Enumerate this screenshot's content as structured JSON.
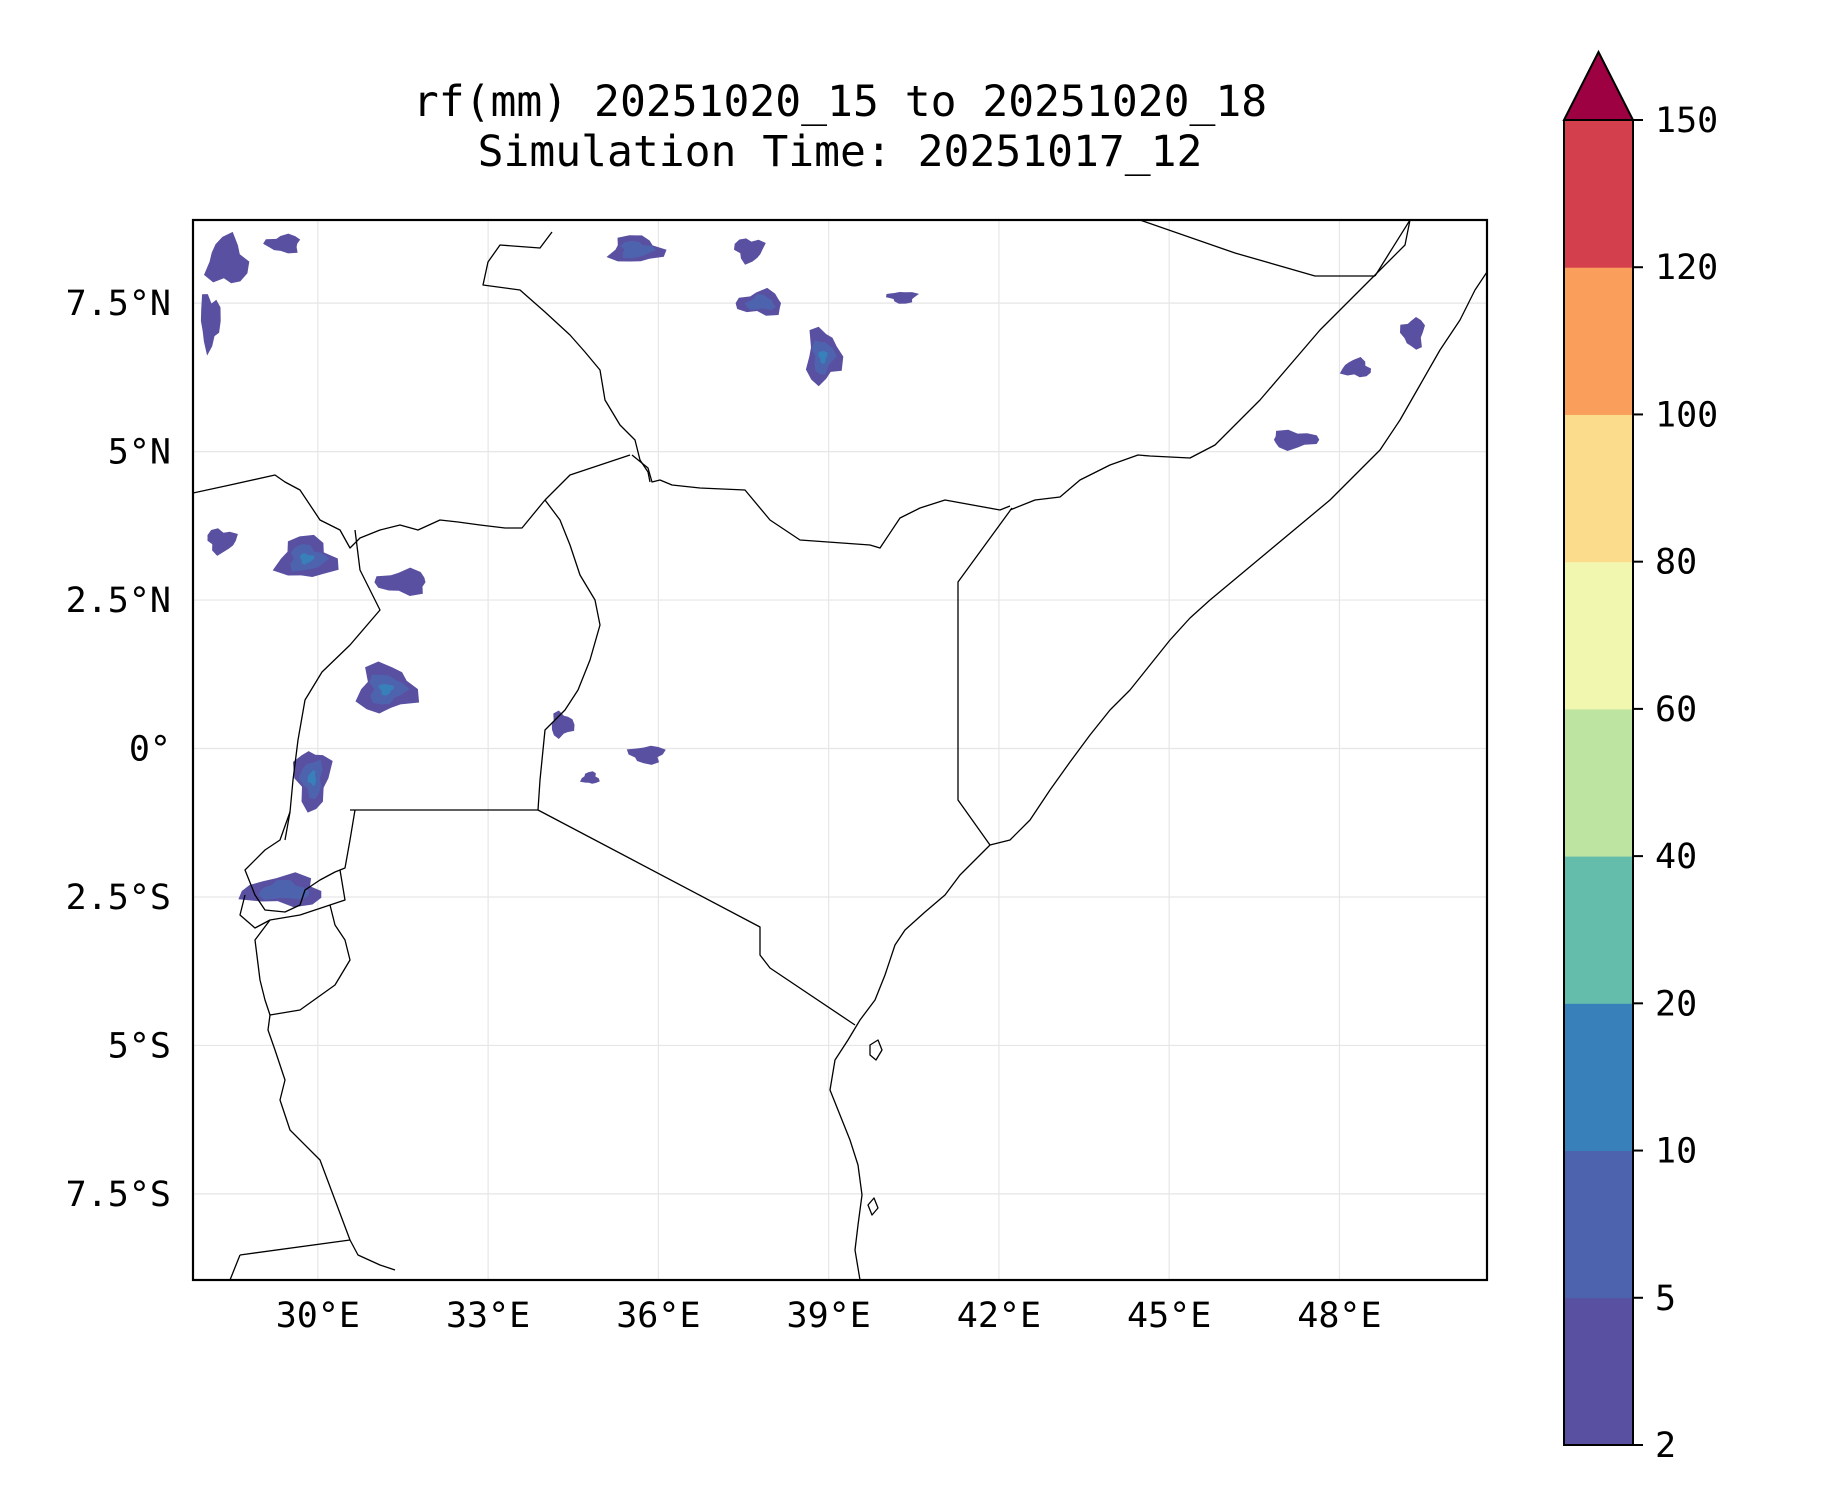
{
  "title": {
    "line1": "rf(mm) 20251020_15 to 20251020_18",
    "line2": "Simulation Time: 20251017_12"
  },
  "map": {
    "lon_range": [
      27.8,
      50.6
    ],
    "lat_range": [
      -8.95,
      8.9
    ],
    "x_ticks": [
      {
        "value": 30,
        "label": "30°E"
      },
      {
        "value": 33,
        "label": "33°E"
      },
      {
        "value": 36,
        "label": "36°E"
      },
      {
        "value": 39,
        "label": "39°E"
      },
      {
        "value": 42,
        "label": "42°E"
      },
      {
        "value": 45,
        "label": "45°E"
      },
      {
        "value": 48,
        "label": "48°E"
      }
    ],
    "y_ticks": [
      {
        "value": 7.5,
        "label": "7.5°N"
      },
      {
        "value": 5,
        "label": "5°N"
      },
      {
        "value": 2.5,
        "label": "2.5°N"
      },
      {
        "value": 0,
        "label": "0°"
      },
      {
        "value": -2.5,
        "label": "2.5°S"
      },
      {
        "value": -5,
        "label": "5°S"
      },
      {
        "value": -7.5,
        "label": "7.5°S"
      }
    ],
    "gridlines": true
  },
  "chart_data": {
    "type": "filled-contour-map",
    "variable": "rf(mm)",
    "levels": [
      2,
      5,
      10,
      20,
      40,
      60,
      80,
      100,
      120,
      150
    ],
    "level_labels": [
      "2",
      "5",
      "10",
      "20",
      "40",
      "60",
      "80",
      "100",
      "120",
      "150"
    ],
    "colors": [
      "#5a50a1",
      "#4e63ae",
      "#3880ba",
      "#63bdaa",
      "#bde4a1",
      "#f2f7b0",
      "#fbdc8d",
      "#f99e5b",
      "#d43f4d"
    ],
    "extend_color": "#9e0142",
    "colorbar_extend": "max",
    "rain_cells": [
      {
        "lon": 28.4,
        "lat": 8.2,
        "rx": 0.7,
        "ry": 0.8,
        "max_level": 0
      },
      {
        "lon": 28.1,
        "lat": 7.2,
        "rx": 0.35,
        "ry": 0.9,
        "max_level": 0
      },
      {
        "lon": 29.4,
        "lat": 8.5,
        "rx": 0.6,
        "ry": 0.3,
        "max_level": 0
      },
      {
        "lon": 35.6,
        "lat": 8.4,
        "rx": 0.9,
        "ry": 0.45,
        "max_level": 1
      },
      {
        "lon": 37.6,
        "lat": 8.4,
        "rx": 0.5,
        "ry": 0.4,
        "max_level": 0
      },
      {
        "lon": 37.8,
        "lat": 7.5,
        "rx": 0.8,
        "ry": 0.4,
        "max_level": 1
      },
      {
        "lon": 38.9,
        "lat": 6.6,
        "rx": 0.6,
        "ry": 0.9,
        "max_level": 2
      },
      {
        "lon": 40.3,
        "lat": 7.6,
        "rx": 0.5,
        "ry": 0.2,
        "max_level": 0
      },
      {
        "lon": 48.3,
        "lat": 6.4,
        "rx": 0.5,
        "ry": 0.3,
        "max_level": 0
      },
      {
        "lon": 47.2,
        "lat": 5.2,
        "rx": 0.8,
        "ry": 0.3,
        "max_level": 0
      },
      {
        "lon": 49.3,
        "lat": 7.0,
        "rx": 0.4,
        "ry": 0.5,
        "max_level": 0
      },
      {
        "lon": 29.8,
        "lat": 3.2,
        "rx": 1.0,
        "ry": 0.7,
        "max_level": 2
      },
      {
        "lon": 28.3,
        "lat": 3.5,
        "rx": 0.5,
        "ry": 0.4,
        "max_level": 0
      },
      {
        "lon": 31.5,
        "lat": 2.8,
        "rx": 0.9,
        "ry": 0.4,
        "max_level": 0
      },
      {
        "lon": 31.2,
        "lat": 1.0,
        "rx": 1.0,
        "ry": 0.8,
        "max_level": 2
      },
      {
        "lon": 29.9,
        "lat": -0.5,
        "rx": 0.6,
        "ry": 1.0,
        "max_level": 2
      },
      {
        "lon": 29.4,
        "lat": -2.4,
        "rx": 1.4,
        "ry": 0.5,
        "max_level": 1
      },
      {
        "lon": 34.3,
        "lat": 0.4,
        "rx": 0.4,
        "ry": 0.4,
        "max_level": 0
      },
      {
        "lon": 35.8,
        "lat": -0.1,
        "rx": 0.6,
        "ry": 0.3,
        "max_level": 0
      },
      {
        "lon": 34.8,
        "lat": -0.5,
        "rx": 0.3,
        "ry": 0.2,
        "max_level": 0
      }
    ]
  },
  "colorbar": {
    "tick_labels": [
      "2",
      "5",
      "10",
      "20",
      "40",
      "60",
      "80",
      "100",
      "120",
      "150"
    ]
  }
}
